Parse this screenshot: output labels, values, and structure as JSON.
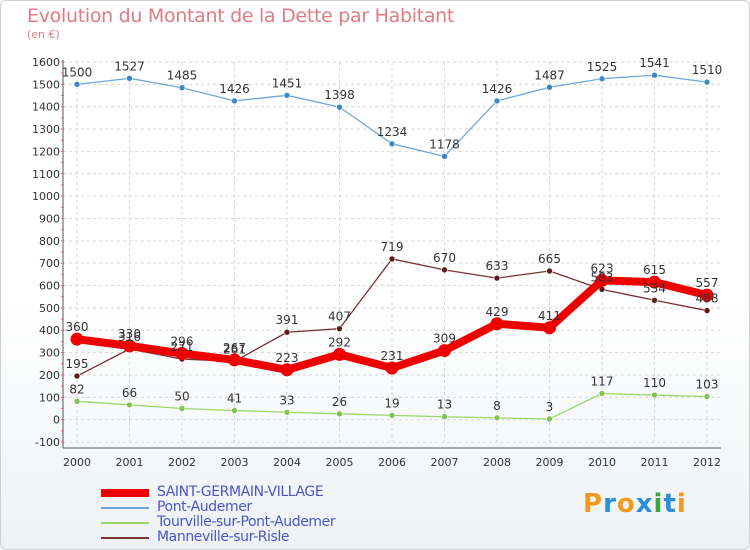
{
  "title": "Evolution du Montant de la Dette par Habitant",
  "subtitle": "(en €)",
  "logo": {
    "text": "Proxiti",
    "letters": [
      "P",
      "r",
      "o",
      "x",
      "i",
      "t",
      "i"
    ],
    "colors": [
      "#f29a1f",
      "#2b8fd6",
      "#f29a1f",
      "#2b8fd6",
      "#3aa640",
      "#2b8fd6",
      "#f29a1f"
    ]
  },
  "chart_data": {
    "type": "line",
    "title": "Evolution du Montant de la Dette par Habitant",
    "subtitle": "(en €)",
    "xlabel": "",
    "ylabel": "",
    "x": [
      "2000",
      "2001",
      "2002",
      "2003",
      "2004",
      "2005",
      "2006",
      "2007",
      "2008",
      "2009",
      "2010",
      "2011",
      "2012"
    ],
    "ylim": [
      -100,
      1600
    ],
    "yticks": [
      "-100",
      "0",
      "100",
      "200",
      "300",
      "400",
      "500",
      "600",
      "700",
      "800",
      "900",
      "1000",
      "1100",
      "1200",
      "1300",
      "1400",
      "1500",
      "1600"
    ],
    "grid": true,
    "legend_position": "bottom-left",
    "series": [
      {
        "name": "Pont-Audemer",
        "color": "#6fa8d8",
        "marker_color": "#3b87c8",
        "values": [
          1500,
          1527,
          1485,
          1426,
          1451,
          1398,
          1234,
          1178,
          1426,
          1487,
          1525,
          1541,
          1510
        ],
        "labels": [
          "1500",
          "1527",
          "1485",
          "1426",
          "1451",
          "1398",
          "1234",
          "1178",
          "1426",
          "1487",
          "1525",
          "1541",
          "1510"
        ]
      },
      {
        "name": "Tourville-sur-Pont-Audemer",
        "color": "#9ad66a",
        "marker_color": "#84c24f",
        "values": [
          82,
          66,
          50,
          41,
          33,
          26,
          19,
          13,
          8,
          3,
          117,
          110,
          103
        ],
        "labels": [
          "82",
          "66",
          "50",
          "41",
          "33",
          "26",
          "19",
          "13",
          "8",
          "3",
          "117",
          "110",
          "103"
        ]
      },
      {
        "name": "Manneville-sur-Risle",
        "color": "#7a3236",
        "marker_color": "#5e1a1e",
        "values": [
          195,
          316,
          271,
          261,
          391,
          407,
          719,
          670,
          633,
          665,
          583,
          534,
          488
        ],
        "labels": [
          "195",
          "316",
          "271",
          "261",
          "391",
          "407",
          "719",
          "670",
          "633",
          "665",
          "583",
          "534",
          "488"
        ]
      },
      {
        "name": "SAINT-GERMAIN-VILLAGE",
        "color": "#ee0000",
        "marker_color": "#ee0000",
        "values": [
          360,
          330,
          296,
          267,
          223,
          292,
          231,
          309,
          429,
          411,
          623,
          615,
          557
        ],
        "labels": [
          "360",
          "330",
          "296",
          "267",
          "223",
          "292",
          "231",
          "309",
          "429",
          "411",
          "623",
          "615",
          "557"
        ]
      }
    ]
  },
  "legend": [
    {
      "label": "SAINT-GERMAIN-VILLAGE",
      "color": "#ee0000"
    },
    {
      "label": "Pont-Audemer",
      "color": "#6fa8d8"
    },
    {
      "label": "Tourville-sur-Pont-Audemer",
      "color": "#9ad66a"
    },
    {
      "label": "Manneville-sur-Risle",
      "color": "#7a3236"
    }
  ]
}
